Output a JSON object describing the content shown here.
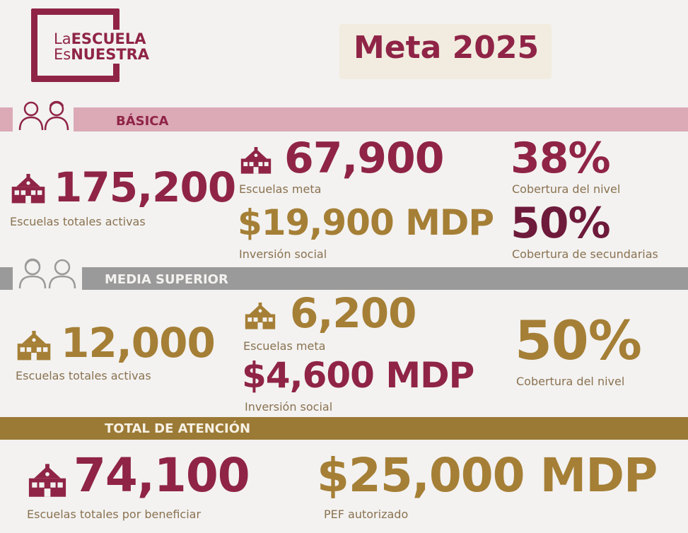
{
  "logo": {
    "line1_a": "La",
    "line1_b": "ESCUELA",
    "line2_a": "Es",
    "line2_b": "NUESTRA"
  },
  "title": "Meta 2025",
  "colors": {
    "maroon": "#8f2447",
    "gold": "#a57f36",
    "pink_bar": "#d9a9b6",
    "gray_bar": "#9a9a9a",
    "gold_bar": "#9b7a36"
  },
  "basica": {
    "label": "BÁSICA",
    "total_value": "175,200",
    "total_label": "Escuelas totales activas",
    "meta_value": "67,900",
    "meta_label": "Escuelas meta",
    "investment_value": "$19,900 MDP",
    "investment_label": "Inversión social",
    "coverage_value": "38%",
    "coverage_label": "Cobertura del nivel",
    "secondary_value": "50%",
    "secondary_label": "Cobertura de secundarias"
  },
  "media": {
    "label": "MEDIA SUPERIOR",
    "total_value": "12,000",
    "total_label": "Escuelas totales activas",
    "meta_value": "6,200",
    "meta_label": "Escuelas meta",
    "investment_value": "$4,600 MDP",
    "investment_label": "Inversión social",
    "coverage_value": "50%",
    "coverage_label": "Cobertura del nivel"
  },
  "total": {
    "label": "TOTAL DE ATENCIÓN",
    "schools_value": "74,100",
    "schools_label": "Escuelas totales por beneficiar",
    "pef_value": "$25,000 MDP",
    "pef_label": "PEF autorizado"
  },
  "icons": {
    "school": "school-icon",
    "kids": "children-icon",
    "teens": "students-icon"
  }
}
